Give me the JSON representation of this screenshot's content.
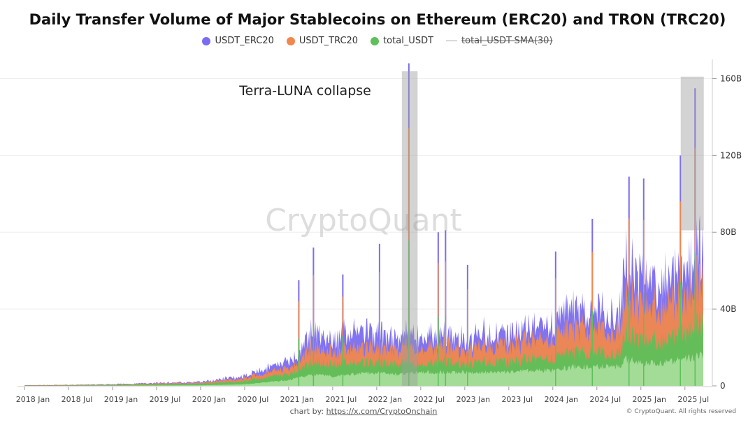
{
  "chart_data": {
    "type": "area",
    "title": "Daily Transfer Volume of Major Stablecoins on Ethereum (ERC20) and TRON (TRC20)",
    "legend_position": "top-center",
    "series": [
      {
        "name": "USDT_ERC20",
        "color": "#7b6cf0",
        "style": "stacked-area"
      },
      {
        "name": "USDT_TRC20",
        "color": "#f0874d",
        "style": "stacked-area"
      },
      {
        "name": "total_USDT",
        "color": "#5ec05a",
        "style": "stacked-area"
      },
      {
        "name": "total_USDT-SMA(30)",
        "color": "#999999",
        "style": "line",
        "hidden": true
      }
    ],
    "x_ticks": [
      "2018 Jan",
      "2018 Jul",
      "2019 Jan",
      "2019 Jul",
      "2020 Jan",
      "2020 Jul",
      "2021 Jan",
      "2021 Jul",
      "2022 Jan",
      "2022 Jul",
      "2023 Jan",
      "2023 Jul",
      "2024 Jan",
      "2024 Jul",
      "2025 Jan",
      "2025 Jul"
    ],
    "y_ticks": [
      "0",
      "40B",
      "80B",
      "120B",
      "160B"
    ],
    "ylim": [
      0,
      170
    ],
    "y_unit": "B",
    "trend": {
      "x": [
        "2018 Jan",
        "2018 Jul",
        "2019 Jan",
        "2019 Jul",
        "2020 Jan",
        "2020 Jul",
        "2021 Jan",
        "2021 Mar",
        "2021 May",
        "2021 Jul",
        "2021 Oct",
        "2022 Jan",
        "2022 Mar",
        "2022 Apr",
        "2022 Jun",
        "2022 Aug",
        "2022 Oct",
        "2023 Jan",
        "2023 Apr",
        "2023 Jul",
        "2023 Oct",
        "2024 Jan",
        "2024 Apr",
        "2024 Jul",
        "2024 Oct",
        "2024 Nov",
        "2025 Jan",
        "2025 Apr",
        "2025 Jul",
        "2025 Sep"
      ],
      "erc20_top": [
        0.3,
        0.5,
        0.8,
        1.5,
        2,
        5,
        12,
        20,
        30,
        22,
        28,
        26,
        24,
        25,
        26,
        24,
        27,
        22,
        27,
        25,
        30,
        33,
        38,
        38,
        36,
        62,
        55,
        52,
        60,
        68
      ],
      "trc20_top": [
        0.2,
        0.4,
        0.6,
        1.2,
        1.6,
        4,
        9,
        16,
        22,
        17,
        20,
        19,
        19,
        20,
        20,
        19,
        22,
        18,
        22,
        20,
        24,
        26,
        29,
        30,
        29,
        48,
        42,
        40,
        48,
        55
      ],
      "total_top": [
        0.1,
        0.2,
        0.4,
        0.8,
        1.1,
        2.5,
        6,
        10,
        13,
        11,
        12,
        12,
        11,
        12,
        12,
        11,
        13,
        11,
        13,
        12,
        14,
        15,
        17,
        17,
        17,
        27,
        24,
        23,
        28,
        32
      ],
      "base": [
        0,
        0,
        0.1,
        0.2,
        0.3,
        0.8,
        3,
        5,
        6,
        5,
        6,
        7,
        6,
        6,
        7,
        7,
        7,
        7,
        7,
        7,
        8,
        8,
        10,
        10,
        10,
        14,
        12,
        12,
        14,
        16
      ]
    },
    "spikes": [
      {
        "x": "2021 Feb",
        "value": 55
      },
      {
        "x": "2021 Apr",
        "value": 72
      },
      {
        "x": "2021 Aug",
        "value": 58
      },
      {
        "x": "2022 Jan",
        "value": 74
      },
      {
        "x": "2022 May",
        "value": 168
      },
      {
        "x": "2022 Sep",
        "value": 80
      },
      {
        "x": "2022 Oct",
        "value": 81
      },
      {
        "x": "2023 Jan",
        "value": 63
      },
      {
        "x": "2024 Jan",
        "value": 70
      },
      {
        "x": "2024 Jun",
        "value": 87
      },
      {
        "x": "2024 Nov",
        "value": 109
      },
      {
        "x": "2025 Jan",
        "value": 108
      },
      {
        "x": "2025 Jun",
        "value": 120
      },
      {
        "x": "2025 Aug",
        "value": 155
      }
    ],
    "highlights": [
      {
        "x_start": "2022 May",
        "x_end": "2022 Jun",
        "y_from": 0,
        "y_to": 170,
        "label": "Terra-LUNA collapse"
      },
      {
        "x_start": "2025 Jul",
        "x_end": "2025 Sep",
        "y_from": 81,
        "y_to": 161,
        "label": ""
      }
    ]
  },
  "watermark": "CryptoQuant",
  "footer": {
    "source_prefix": "chart by: ",
    "source_link": "https://x.com/CryptoOnchain",
    "copyright": "© CryptoQuant. All rights reserved"
  }
}
